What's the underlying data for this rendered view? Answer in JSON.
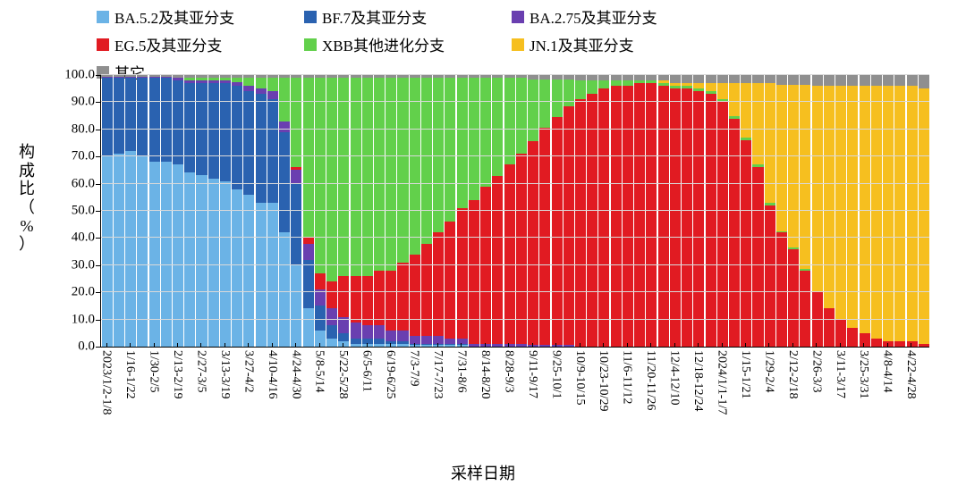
{
  "chart": {
    "type": "stacked-bar-100pct",
    "background_color": "#ffffff",
    "grid_color": "#d9d9d9",
    "axis_color": "#000000",
    "text_color": "#000000",
    "font_family_serif": "SimSun / Songti",
    "yaxis": {
      "title": "构成比（%）",
      "title_fontsize": 18,
      "min": 0,
      "max": 100,
      "tick_step": 10,
      "ticks": [
        "0.0",
        "10.0",
        "20.0",
        "30.0",
        "40.0",
        "50.0",
        "60.0",
        "70.0",
        "80.0",
        "90.0",
        "100.0"
      ],
      "tick_fontsize": 15
    },
    "xaxis": {
      "title": "采样日期",
      "title_fontsize": 18,
      "tick_fontsize": 14,
      "tick_step": 2,
      "categories": [
        "2023/1/2-1/8",
        "1/9-1/15",
        "1/16-1/22",
        "1/23-1/29",
        "1/30-2/5",
        "2/6-2/12",
        "2/13-2/19",
        "2/20-2/26",
        "2/27-3/5",
        "3/6-3/12",
        "3/13-3/19",
        "3/20-3/26",
        "3/27-4/2",
        "4/3-4/9",
        "4/10-4/16",
        "4/17-4/23",
        "4/24-4/30",
        "5/1-5/7",
        "5/8-5/14",
        "5/15-5/21",
        "5/22-5/28",
        "5/29-6/4",
        "6/5-6/11",
        "6/12-6/18",
        "6/19-6/25",
        "6/26-7/2",
        "7/3-7/9",
        "7/10-7/16",
        "7/17-7/23",
        "7/24-7/30",
        "7/31-8/6",
        "8/7-8/13",
        "8/14-8/20",
        "8/21-8/27",
        "8/28-9/3",
        "9/4-9/10",
        "9/11-9/17",
        "9/18-9/24",
        "9/25-10/1",
        "10/2-10/8",
        "10/9-10/15",
        "10/16-10/22",
        "10/23-10/29",
        "10/30-11/5",
        "11/6-11/12",
        "11/13-11/19",
        "11/20-11/26",
        "11/27-12/3",
        "12/4-12/10",
        "12/11-12/17",
        "12/18-12/24",
        "12/25-12/31",
        "2024/1/1-1/7",
        "1/8-1/14",
        "1/15-1/21",
        "1/22-1/28",
        "1/29-2/4",
        "2/5-2/11",
        "2/12-2/18",
        "2/19-2/25",
        "2/26-3/3",
        "3/4-3/10",
        "3/11-3/17",
        "3/18-3/24",
        "3/25-3/31",
        "4/1-4/7",
        "4/8-4/14",
        "4/15-4/21",
        "4/22-4/28",
        "4/29-5/5"
      ],
      "tick_labels_shown": [
        "2023/1/2-1/8",
        "1/16-1/22",
        "1/30-2/5",
        "2/13-2/19",
        "2/27-3/5",
        "3/13-3/19",
        "3/27-4/2",
        "4/10-4/16",
        "4/24-4/30",
        "5/8-5/14",
        "5/22-5/28",
        "6/5-6/11",
        "6/19-6/25",
        "7/3-7/9",
        "7/17-7/23",
        "7/31-8/6",
        "8/14-8/20",
        "8/28-9/3",
        "9/11-9/17",
        "9/25-10/1",
        "10/9-10/15",
        "10/23-10/29",
        "11/6-11/12",
        "11/20-11/26",
        "12/4-12/10",
        "12/18-12/24",
        "2024/1/1-1/7",
        "1/15-1/21",
        "1/29-2/4",
        "2/12-2/18",
        "2/26-3/3",
        "3/11-3/17",
        "3/25-3/31",
        "4/8-4/14",
        "4/22-4/28"
      ]
    },
    "series": [
      {
        "key": "ba52",
        "label": "BA.5.2及其亚分支",
        "color": "#6bb3e6"
      },
      {
        "key": "bf7",
        "label": "BF.7及其亚分支",
        "color": "#2a62b0"
      },
      {
        "key": "ba275",
        "label": "BA.2.75及其亚分支",
        "color": "#6a3fb0"
      },
      {
        "key": "eg5",
        "label": "EG.5及其亚分支",
        "color": "#e11b22"
      },
      {
        "key": "xbb",
        "label": "XBB其他进化分支",
        "color": "#62d04b"
      },
      {
        "key": "jn1",
        "label": "JN.1及其亚分支",
        "color": "#f6bf1f"
      },
      {
        "key": "other",
        "label": "其它",
        "color": "#8f8f8f"
      }
    ],
    "stack_order": [
      "ba52",
      "bf7",
      "ba275",
      "eg5",
      "xbb",
      "jn1",
      "other"
    ],
    "legend": {
      "fontsize": 17,
      "swatch_size": 14
    },
    "bar_width_ratio": 0.88,
    "data": {
      "ba52": [
        70,
        71,
        72,
        70,
        68,
        68,
        67,
        64,
        63,
        62,
        61,
        58,
        56,
        53,
        53,
        42,
        30,
        14,
        6,
        3,
        2,
        1,
        1,
        1,
        1,
        1,
        0.5,
        0.5,
        0.5,
        0.5,
        0.5,
        0,
        0,
        0,
        0,
        0,
        0,
        0,
        0,
        0,
        0,
        0,
        0,
        0,
        0,
        0,
        0,
        0,
        0,
        0,
        0,
        0,
        0,
        0,
        0,
        0,
        0,
        0,
        0,
        0,
        0,
        0,
        0,
        0,
        0,
        0,
        0,
        0,
        0,
        0
      ],
      "bf7": [
        29,
        28,
        27,
        29,
        31,
        31,
        31,
        33,
        34,
        35,
        36,
        38,
        38,
        40,
        38,
        37,
        30,
        18,
        9,
        5,
        3,
        2,
        2,
        2,
        1,
        1,
        0.5,
        0.5,
        0.5,
        0.5,
        0.5,
        0,
        0,
        0,
        0,
        0,
        0,
        0,
        0,
        0,
        0,
        0,
        0,
        0,
        0,
        0,
        0,
        0,
        0,
        0,
        0,
        0,
        0,
        0,
        0,
        0,
        0,
        0,
        0,
        0,
        0,
        0,
        0,
        0,
        0,
        0,
        0,
        0,
        0,
        0
      ],
      "ba275": [
        0.5,
        0.5,
        0.5,
        0.5,
        0.5,
        0.5,
        1,
        1,
        1,
        1,
        1,
        1.5,
        2,
        2,
        3,
        4,
        5,
        6,
        6,
        6,
        6,
        6,
        5,
        5,
        4,
        4,
        3,
        3,
        3,
        2,
        2,
        1,
        1,
        1,
        1,
        1,
        0.5,
        0.5,
        0.5,
        0.5,
        0,
        0,
        0,
        0,
        0,
        0,
        0,
        0,
        0,
        0,
        0,
        0,
        0,
        0,
        0,
        0,
        0,
        0,
        0,
        0,
        0,
        0,
        0,
        0,
        0,
        0,
        0,
        0,
        0,
        0
      ],
      "eg5": [
        0,
        0,
        0,
        0,
        0,
        0,
        0,
        0,
        0,
        0,
        0,
        0,
        0,
        0,
        0,
        0,
        1,
        2,
        6,
        10,
        15,
        17,
        18,
        20,
        22,
        25,
        30,
        34,
        38,
        43,
        48,
        53,
        58,
        62,
        66,
        70,
        75,
        80,
        84,
        88,
        91,
        93,
        95,
        96,
        96,
        97,
        97,
        96,
        95,
        95,
        94,
        93,
        90,
        84,
        76,
        66,
        52,
        42,
        36,
        28,
        20,
        14,
        10,
        7,
        5,
        3,
        2,
        2,
        2,
        1
      ],
      "xbb": [
        0,
        0,
        0,
        0,
        0,
        0,
        0,
        1,
        1,
        1,
        1,
        1.5,
        3,
        4,
        5,
        16,
        33,
        59,
        72,
        75,
        73,
        73,
        73,
        71,
        71,
        68,
        65,
        61,
        57,
        53,
        48,
        45,
        40,
        36,
        32,
        28,
        23,
        18,
        14,
        10,
        7,
        5,
        3,
        2,
        2,
        1,
        1,
        1,
        1,
        1,
        1,
        1,
        1,
        1,
        1,
        1,
        1,
        0.5,
        0.5,
        0.5,
        0,
        0,
        0,
        0,
        0,
        0,
        0,
        0,
        0,
        0
      ],
      "jn1": [
        0,
        0,
        0,
        0,
        0,
        0,
        0,
        0,
        0,
        0,
        0,
        0,
        0,
        0,
        0,
        0,
        0,
        0,
        0,
        0,
        0,
        0,
        0,
        0,
        0,
        0,
        0,
        0,
        0,
        0,
        0,
        0,
        0,
        0,
        0,
        0,
        0,
        0,
        0,
        0,
        0,
        0,
        0,
        0,
        0,
        0,
        0,
        1,
        1,
        1,
        2,
        3,
        6,
        12,
        20,
        30,
        44,
        54,
        60,
        68,
        76,
        82,
        86,
        89,
        91,
        93,
        94,
        94,
        94,
        94
      ],
      "other": [
        0.5,
        0.5,
        0.5,
        0.5,
        0.5,
        0.5,
        1,
        1,
        1,
        1,
        1,
        1,
        1,
        1,
        1,
        1,
        1,
        1,
        1,
        1,
        1,
        1,
        1,
        1,
        1,
        1,
        1,
        1,
        1,
        1,
        1,
        1,
        1,
        1,
        1,
        1,
        1.5,
        1.5,
        1.5,
        1.5,
        2,
        2,
        2,
        2,
        2,
        2,
        2,
        2,
        3,
        3,
        3,
        3,
        3,
        3,
        3,
        3,
        3,
        3.5,
        3.5,
        3.5,
        4,
        4,
        4,
        4,
        4,
        4,
        4,
        4,
        4,
        5
      ]
    }
  }
}
